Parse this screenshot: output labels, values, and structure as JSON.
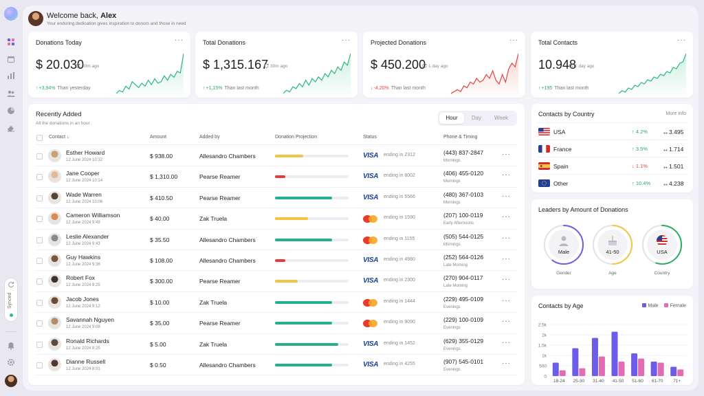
{
  "header": {
    "greeting": "Welcome back,",
    "user_name": "Alex",
    "subtitle": "Your enduring dedication gives inspiration to donors and those in need"
  },
  "sidebar": {
    "icons": [
      "dashboard-icon",
      "calendar-icon",
      "bar-chart-icon",
      "users-icon",
      "pie-chart-icon",
      "eraser-icon"
    ],
    "synced_label": "Synced",
    "bottom_icons": [
      "bell-icon",
      "settings-icon"
    ]
  },
  "stats": [
    {
      "title": "Donations Today",
      "value": "$ 20.030",
      "time": "30m ago",
      "change": "+3,94%",
      "direction": "up",
      "comparison": "Than yesterday",
      "trend": [
        8,
        10,
        9,
        13,
        11,
        16,
        14,
        12,
        15,
        13,
        17,
        14,
        18,
        15,
        16,
        20,
        17,
        21,
        19,
        23,
        22,
        35
      ]
    },
    {
      "title": "Total Donations",
      "value": "$ 1,315.167",
      "time": "30m ago",
      "change": "+1,15%",
      "direction": "up",
      "comparison": "Than last month",
      "trend": [
        6,
        8,
        7,
        10,
        9,
        12,
        10,
        14,
        11,
        15,
        13,
        16,
        14,
        18,
        16,
        20,
        18,
        22,
        20,
        25,
        23,
        30
      ]
    },
    {
      "title": "Projected Donations",
      "value": "$ 450.200",
      "time": "1 day ago",
      "change": "-4,20%",
      "direction": "down",
      "comparison": "Than last month",
      "trend": [
        6,
        7,
        8,
        7,
        10,
        9,
        12,
        11,
        14,
        12,
        13,
        16,
        14,
        18,
        13,
        11,
        16,
        12,
        19,
        22,
        20,
        27
      ]
    },
    {
      "title": "Total Contacts",
      "value": "10.948",
      "time": "1 day ago",
      "change": "+195",
      "direction": "up",
      "comparison": "Than last month",
      "trend": [
        4,
        6,
        5,
        8,
        7,
        10,
        9,
        12,
        11,
        14,
        13,
        16,
        15,
        18,
        17,
        20,
        19,
        23,
        22,
        26,
        27,
        33
      ]
    }
  ],
  "recent": {
    "title": "Recently Added",
    "subtitle": "All the donations in an hour",
    "tabs": [
      "Hour",
      "Day",
      "Week"
    ],
    "active_tab": "Hour",
    "columns": [
      "Contact",
      "Amount",
      "Added by",
      "Donation Projection",
      "Status",
      "Phone & Timing"
    ],
    "rows": [
      {
        "name": "Esther Howard",
        "date": "12 June 2024 10:32",
        "amount": "$ 938.00",
        "added_by": "Allesandro Chambers",
        "projection": 0.38,
        "level": "yellow",
        "card": "visa",
        "ending": "ending in 2312",
        "phone": "(443) 837-2847",
        "timing": "Mornings",
        "avatar": "#c9a07c"
      },
      {
        "name": "Jane Cooper",
        "date": "12 June 2024 10:14",
        "amount": "$ 1,310.00",
        "added_by": "Pearse Reamer",
        "projection": 0.14,
        "level": "red",
        "card": "visa",
        "ending": "ending in 8002",
        "phone": "(406) 455-0120",
        "timing": "Mornings",
        "avatar": "#e2b99b"
      },
      {
        "name": "Wade Warren",
        "date": "12 June 2024 10:06",
        "amount": "$ 410.50",
        "added_by": "Pearse Reamer",
        "projection": 0.78,
        "level": "green",
        "card": "visa",
        "ending": "ending in 5566",
        "phone": "(480) 367-0103",
        "timing": "Mornings",
        "avatar": "#5b4034"
      },
      {
        "name": "Cameron Williamson",
        "date": "12 June 2024 9:49",
        "amount": "$ 40.00",
        "added_by": "Zak Truela",
        "projection": 0.45,
        "level": "yellow",
        "card": "mastercard",
        "ending": "ending in 1590",
        "phone": "(207) 100-0119",
        "timing": "Early Afternoons",
        "avatar": "#d98b52"
      },
      {
        "name": "Leslie Alexander",
        "date": "12 June 2024 9:43",
        "amount": "$ 35.50",
        "added_by": "Allesandro Chambers",
        "projection": 0.78,
        "level": "green",
        "card": "mastercard",
        "ending": "ending in 1155",
        "phone": "(505) 544-0125",
        "timing": "Mornings",
        "avatar": "#8a8a8a"
      },
      {
        "name": "Guy Hawkins",
        "date": "12 June 2024 9:36",
        "amount": "$ 108.00",
        "added_by": "Allesandro Chambers",
        "projection": 0.14,
        "level": "red",
        "card": "visa",
        "ending": "ending in 4980",
        "phone": "(252) 564-0126",
        "timing": "Late Morning",
        "avatar": "#7a5544"
      },
      {
        "name": "Robert Fox",
        "date": "12 June 2024 9:25",
        "amount": "$ 300.00",
        "added_by": "Pearse Reamer",
        "projection": 0.31,
        "level": "yellow",
        "card": "visa",
        "ending": "ending in 2300",
        "phone": "(270) 904-0117",
        "timing": "Late Morning",
        "avatar": "#3d3230"
      },
      {
        "name": "Jacob Jones",
        "date": "12 June 2024 9:12",
        "amount": "$ 10.00",
        "added_by": "Zak Truela",
        "projection": 0.78,
        "level": "green",
        "card": "mastercard",
        "ending": "ending in 1444",
        "phone": "(229) 495-0109",
        "timing": "Evenings",
        "avatar": "#6e4a3a"
      },
      {
        "name": "Savannah Nguyen",
        "date": "12 June 2024 9:08",
        "amount": "$ 35.00",
        "added_by": "Pearse Reamer",
        "projection": 0.78,
        "level": "green",
        "card": "mastercard",
        "ending": "ending in 9090",
        "phone": "(229) 100-0109",
        "timing": "Evenings",
        "avatar": "#b58b6c"
      },
      {
        "name": "Ronald Richards",
        "date": "12 June 2024 8:25",
        "amount": "$ 5.00",
        "added_by": "Zak Truela",
        "projection": 0.86,
        "level": "green",
        "card": "visa",
        "ending": "ending in 1452",
        "phone": "(629) 355-0129",
        "timing": "Evenings",
        "avatar": "#5d4a40"
      },
      {
        "name": "Dianne Russell",
        "date": "12 June 2024 8:01",
        "amount": "$ 0.50",
        "added_by": "Allesandro Chambers",
        "projection": 0.78,
        "level": "green",
        "card": "visa",
        "ending": "ending in 4255",
        "phone": "(907) 545-0101",
        "timing": "Evenings",
        "avatar": "#4c3a33"
      }
    ]
  },
  "countries": {
    "title": "Contacts by Country",
    "more": "More Info",
    "rows": [
      {
        "name": "USA",
        "change": "4.2%",
        "direction": "up",
        "users": "3.495",
        "flag": "usa"
      },
      {
        "name": "France",
        "change": "3.5%",
        "direction": "up",
        "users": "1.714",
        "flag": "france"
      },
      {
        "name": "Spain",
        "change": "1.1%",
        "direction": "down",
        "users": "1.501",
        "flag": "spain"
      },
      {
        "name": "Other",
        "change": "10.4%",
        "direction": "up",
        "users": "4.238",
        "flag": "eu"
      }
    ]
  },
  "leaders": {
    "title": "Leaders by Amount of Donations",
    "items": [
      {
        "value": "Male",
        "caption": "Gender",
        "color": "#6c5ce7",
        "fraction": 0.6
      },
      {
        "value": "41-50",
        "caption": "Age",
        "color": "#f5c242",
        "fraction": 0.5
      },
      {
        "value": "USA",
        "caption": "Country",
        "color": "#27ae60",
        "fraction": 0.55
      }
    ]
  },
  "age_chart": {
    "title": "Contacts by Age",
    "legend": [
      "Male",
      "Female"
    ],
    "colors": {
      "male": "#6c5ce7",
      "female": "#e26db4"
    }
  },
  "chart_data": {
    "type": "bar",
    "categories": [
      "18-24",
      "25-30",
      "31-40",
      "41-50",
      "51-60",
      "61-70",
      "71+"
    ],
    "series": [
      {
        "name": "Male",
        "values": [
          650,
          1350,
          1850,
          2150,
          1100,
          700,
          450
        ]
      },
      {
        "name": "Female",
        "values": [
          280,
          380,
          950,
          700,
          850,
          650,
          320
        ]
      }
    ],
    "y_ticks": [
      "0",
      "500",
      "1k",
      "1.5k",
      "2k",
      "2.5k"
    ],
    "ylim": [
      0,
      2500
    ]
  },
  "colors": {
    "green": "#27ae8f",
    "yellow": "#f5c242",
    "red": "#e23c3c",
    "up": "#2aa86a",
    "down": "#e0453f"
  }
}
